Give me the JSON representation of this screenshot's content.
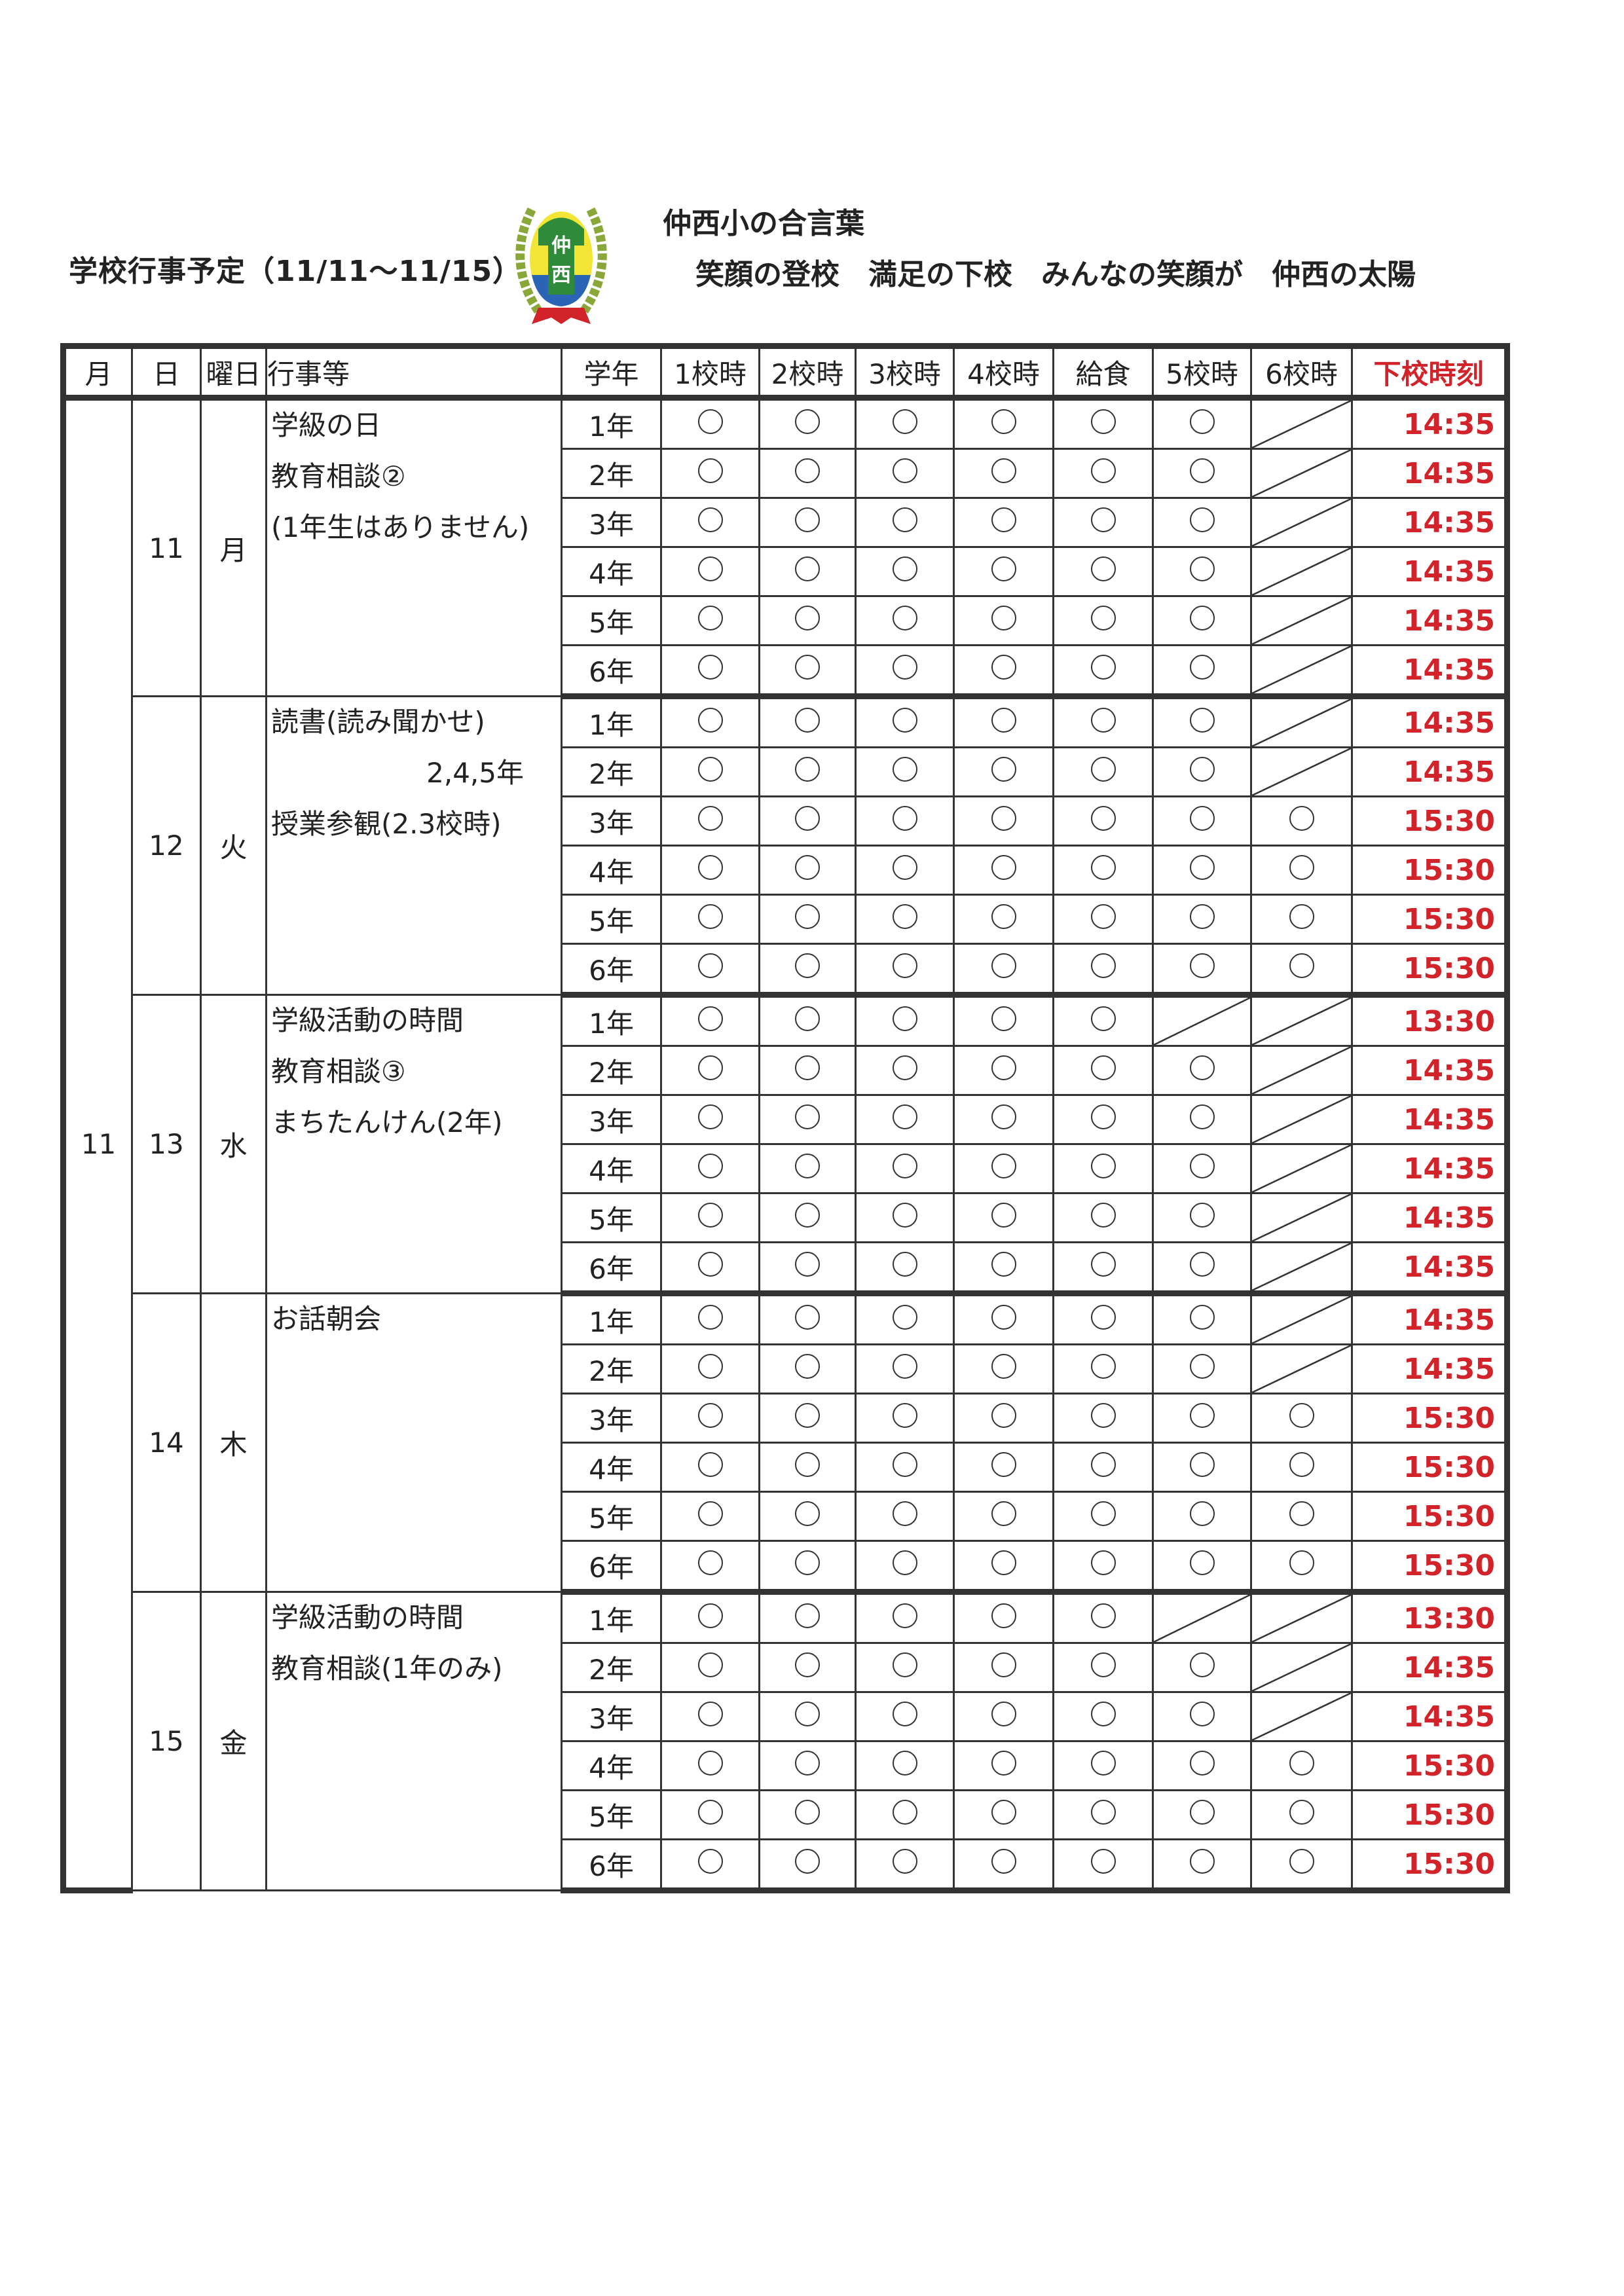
{
  "header": {
    "title": "学校行事予定（11/11〜11/15）",
    "logo_text": "仲西",
    "motto_heading": "仲西小の合言葉",
    "motto": [
      "笑顔の登校",
      "満足の下校",
      "みんなの笑顔が",
      "仲西の太陽"
    ]
  },
  "colors": {
    "accent_red": "#d2232a",
    "rule": "#333333"
  },
  "table": {
    "columns": [
      "月",
      "日",
      "曜日",
      "行事等",
      "学年",
      "1校時",
      "2校時",
      "3校時",
      "4校時",
      "給食",
      "5校時",
      "6校時",
      "下校時刻"
    ],
    "month": "11",
    "days": [
      {
        "day": "11",
        "weekday": "月",
        "events": [
          "学級の日",
          "教育相談②",
          "(1年生はありません)"
        ],
        "rows": [
          {
            "grade": "1年",
            "cells": [
              "○",
              "○",
              "○",
              "○",
              "○",
              "○",
              "/"
            ],
            "time": "14:35"
          },
          {
            "grade": "2年",
            "cells": [
              "○",
              "○",
              "○",
              "○",
              "○",
              "○",
              "/"
            ],
            "time": "14:35"
          },
          {
            "grade": "3年",
            "cells": [
              "○",
              "○",
              "○",
              "○",
              "○",
              "○",
              "/"
            ],
            "time": "14:35"
          },
          {
            "grade": "4年",
            "cells": [
              "○",
              "○",
              "○",
              "○",
              "○",
              "○",
              "/"
            ],
            "time": "14:35"
          },
          {
            "grade": "5年",
            "cells": [
              "○",
              "○",
              "○",
              "○",
              "○",
              "○",
              "/"
            ],
            "time": "14:35"
          },
          {
            "grade": "6年",
            "cells": [
              "○",
              "○",
              "○",
              "○",
              "○",
              "○",
              "/"
            ],
            "time": "14:35"
          }
        ]
      },
      {
        "day": "12",
        "weekday": "火",
        "events": [
          "読書(読み聞かせ)",
          "2,4,5年",
          "授業参観(2.3校時)"
        ],
        "rows": [
          {
            "grade": "1年",
            "cells": [
              "○",
              "○",
              "○",
              "○",
              "○",
              "○",
              "/"
            ],
            "time": "14:35"
          },
          {
            "grade": "2年",
            "cells": [
              "○",
              "○",
              "○",
              "○",
              "○",
              "○",
              "/"
            ],
            "time": "14:35"
          },
          {
            "grade": "3年",
            "cells": [
              "○",
              "○",
              "○",
              "○",
              "○",
              "○",
              "○"
            ],
            "time": "15:30"
          },
          {
            "grade": "4年",
            "cells": [
              "○",
              "○",
              "○",
              "○",
              "○",
              "○",
              "○"
            ],
            "time": "15:30"
          },
          {
            "grade": "5年",
            "cells": [
              "○",
              "○",
              "○",
              "○",
              "○",
              "○",
              "○"
            ],
            "time": "15:30"
          },
          {
            "grade": "6年",
            "cells": [
              "○",
              "○",
              "○",
              "○",
              "○",
              "○",
              "○"
            ],
            "time": "15:30"
          }
        ]
      },
      {
        "day": "13",
        "weekday": "水",
        "events": [
          "学級活動の時間",
          "教育相談③",
          "まちたんけん(2年)"
        ],
        "rows": [
          {
            "grade": "1年",
            "cells": [
              "○",
              "○",
              "○",
              "○",
              "○",
              "/",
              "/"
            ],
            "time": "13:30"
          },
          {
            "grade": "2年",
            "cells": [
              "○",
              "○",
              "○",
              "○",
              "○",
              "○",
              "/"
            ],
            "time": "14:35"
          },
          {
            "grade": "3年",
            "cells": [
              "○",
              "○",
              "○",
              "○",
              "○",
              "○",
              "/"
            ],
            "time": "14:35"
          },
          {
            "grade": "4年",
            "cells": [
              "○",
              "○",
              "○",
              "○",
              "○",
              "○",
              "/"
            ],
            "time": "14:35"
          },
          {
            "grade": "5年",
            "cells": [
              "○",
              "○",
              "○",
              "○",
              "○",
              "○",
              "/"
            ],
            "time": "14:35"
          },
          {
            "grade": "6年",
            "cells": [
              "○",
              "○",
              "○",
              "○",
              "○",
              "○",
              "/"
            ],
            "time": "14:35"
          }
        ]
      },
      {
        "day": "14",
        "weekday": "木",
        "events": [
          "お話朝会"
        ],
        "rows": [
          {
            "grade": "1年",
            "cells": [
              "○",
              "○",
              "○",
              "○",
              "○",
              "○",
              "/"
            ],
            "time": "14:35"
          },
          {
            "grade": "2年",
            "cells": [
              "○",
              "○",
              "○",
              "○",
              "○",
              "○",
              "/"
            ],
            "time": "14:35"
          },
          {
            "grade": "3年",
            "cells": [
              "○",
              "○",
              "○",
              "○",
              "○",
              "○",
              "○"
            ],
            "time": "15:30"
          },
          {
            "grade": "4年",
            "cells": [
              "○",
              "○",
              "○",
              "○",
              "○",
              "○",
              "○"
            ],
            "time": "15:30"
          },
          {
            "grade": "5年",
            "cells": [
              "○",
              "○",
              "○",
              "○",
              "○",
              "○",
              "○"
            ],
            "time": "15:30"
          },
          {
            "grade": "6年",
            "cells": [
              "○",
              "○",
              "○",
              "○",
              "○",
              "○",
              "○"
            ],
            "time": "15:30"
          }
        ]
      },
      {
        "day": "15",
        "weekday": "金",
        "events": [
          "学級活動の時間",
          "教育相談(1年のみ)"
        ],
        "rows": [
          {
            "grade": "1年",
            "cells": [
              "○",
              "○",
              "○",
              "○",
              "○",
              "/",
              "/"
            ],
            "time": "13:30"
          },
          {
            "grade": "2年",
            "cells": [
              "○",
              "○",
              "○",
              "○",
              "○",
              "○",
              "/"
            ],
            "time": "14:35"
          },
          {
            "grade": "3年",
            "cells": [
              "○",
              "○",
              "○",
              "○",
              "○",
              "○",
              "/"
            ],
            "time": "14:35"
          },
          {
            "grade": "4年",
            "cells": [
              "○",
              "○",
              "○",
              "○",
              "○",
              "○",
              "○"
            ],
            "time": "15:30"
          },
          {
            "grade": "5年",
            "cells": [
              "○",
              "○",
              "○",
              "○",
              "○",
              "○",
              "○"
            ],
            "time": "15:30"
          },
          {
            "grade": "6年",
            "cells": [
              "○",
              "○",
              "○",
              "○",
              "○",
              "○",
              "○"
            ],
            "time": "15:30"
          }
        ]
      }
    ]
  }
}
